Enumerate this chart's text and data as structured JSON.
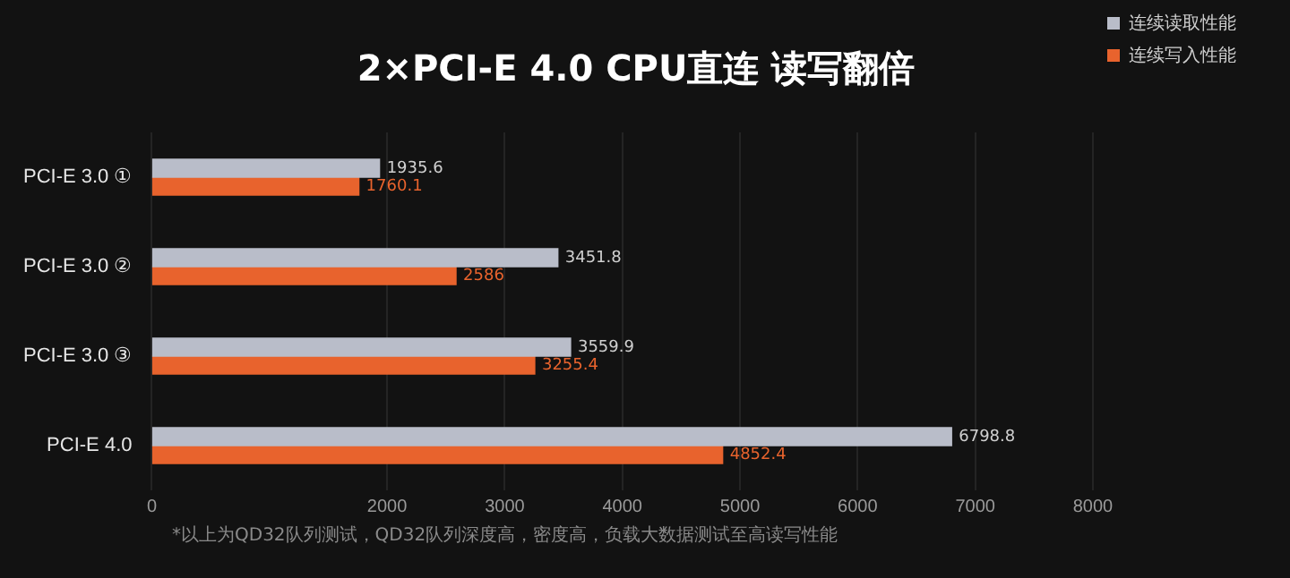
{
  "chart_data": {
    "type": "bar",
    "orientation": "horizontal",
    "title": "2×PCI-E 4.0 CPU直连 读写翻倍",
    "categories": [
      "PCI-E 3.0 ①",
      "PCI-E 3.0 ②",
      "PCI-E 3.0 ③",
      "PCI-E 4.0"
    ],
    "series": [
      {
        "name": "连续读取性能",
        "color": "#b9bdc9",
        "values": [
          1935.6,
          3451.8,
          3559.9,
          6798.8
        ]
      },
      {
        "name": "连续写入性能",
        "color": "#e8632d",
        "values": [
          1760.1,
          2586,
          3255.4,
          4852.4
        ]
      }
    ],
    "xlim": [
      0,
      8000
    ],
    "xticks": [
      0,
      2000,
      3000,
      4000,
      5000,
      6000,
      7000,
      8000
    ],
    "grid": "x",
    "legend": "top right",
    "data_labels": true,
    "annotations": [
      "*以上为QD32队列测试，QD32队列深度高，密度高，负载大数据测试至高读写性能"
    ]
  }
}
